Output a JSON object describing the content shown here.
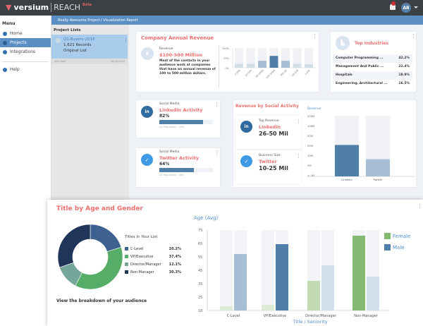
{
  "header": {
    "brand": "versium",
    "product": "REACH",
    "badge": "Beta",
    "notifications": "1",
    "avatar": "AB"
  },
  "sidebar": {
    "title": "Menu",
    "items": [
      {
        "label": "Home",
        "icon": "home-icon"
      },
      {
        "label": "Projects",
        "icon": "database-icon",
        "active": true
      },
      {
        "label": "Integrations",
        "icon": "plug-icon"
      }
    ],
    "help": "Help"
  },
  "breadcrumb": "Really Awesome Project / Visualization Report",
  "project_lists": {
    "title": "Project Lists",
    "item": {
      "name": "Q1-Buyers-2018",
      "records": "1,621 Records",
      "type": "Original List",
      "owner": "Wes Noel",
      "date": "08/02/2018"
    }
  },
  "revenue_card": {
    "title": "Company Annual Revenue",
    "label": "Revenue",
    "value": "$100-500 Million",
    "description": "Most of the contacts in your audience work at companies that have an annual revenue of 100 to 500 million dollars.",
    "chart_data": {
      "type": "bar",
      "categories": [
        "<10M",
        "10-50M",
        "50-100M",
        "100-500M",
        "500-1B",
        "1B-10B",
        ">10B"
      ],
      "values": [
        20,
        20,
        35,
        60,
        35,
        20,
        18
      ],
      "highlight_index": 3,
      "yticks": [
        "100%",
        "50%",
        "0%"
      ],
      "ylim": [
        0,
        100
      ]
    }
  },
  "industries": {
    "title": "Top Industries",
    "rows": [
      {
        "name": "Computer Programming ...",
        "pct": "42.2%"
      },
      {
        "name": "Management And Public ...",
        "pct": "22.4%"
      },
      {
        "name": "Hospitals",
        "pct": "18.9%"
      },
      {
        "name": "Engineering, Architectural ...",
        "pct": "16.5%"
      }
    ]
  },
  "linkedin": {
    "label": "Social Media",
    "title": "Linkedin Activity",
    "pct": "82%",
    "value": 82,
    "footnote": "US Population - 19%"
  },
  "twitter": {
    "label": "Social Media",
    "title": "Twitter Activity",
    "pct": "64%",
    "value": 64,
    "footnote": "US Population - 38%"
  },
  "social_revenue": {
    "title": "Revenue by Social Activity",
    "top": {
      "label": "Top Revenue",
      "network": "Linkedin",
      "value": "26-50 Mil"
    },
    "size": {
      "label": "Business Size",
      "network": "Twitter",
      "value": "10-25 Mil"
    },
    "chart_data": {
      "type": "bar",
      "ylabel": "Revenue",
      "yticks": [
        "300M",
        "100M",
        "50M",
        "25M",
        "10M",
        "5M",
        "< 1M"
      ],
      "ytick_values": [
        300,
        100,
        50,
        25,
        10,
        5,
        1
      ],
      "categories": [
        "Linkedin",
        "Twitter"
      ],
      "values": [
        26,
        8
      ],
      "colors": [
        "#4f7ea8",
        "#a7bfd6"
      ]
    }
  },
  "age_gender": {
    "title": "Title by Age and Gender",
    "legend_title": "Titles In Your List",
    "caption": "View the breakdown of your audience",
    "donut": {
      "type": "pie",
      "slices": [
        {
          "label": "C-Level",
          "pct": "20.2%",
          "value": 20.2,
          "color": "#3e6192"
        },
        {
          "label": "VP/Executive",
          "pct": "37.4%",
          "value": 37.4,
          "color": "#55ad68"
        },
        {
          "label": "Director/Manager",
          "pct": "12.1%",
          "value": 12.1,
          "color": "#74a69a"
        },
        {
          "label": "Non-Manager",
          "pct": "30.3%",
          "value": 30.3,
          "color": "#1f3559"
        }
      ]
    },
    "chart_data": {
      "type": "bar",
      "ylabel": "Age (Avg)",
      "xlabel": "Title / Seniority",
      "yticks": [
        75,
        65,
        55,
        45,
        35,
        25,
        18
      ],
      "ylim": [
        18,
        75
      ],
      "categories": [
        "C-Level",
        "VP/Executive",
        "Director/Manager",
        "Non-Manager"
      ],
      "series": [
        {
          "name": "Female",
          "values": [
            21,
            22,
            39,
            71
          ],
          "colors": [
            "#dcebd6",
            "#dcebd6",
            "#c2dbb5",
            "#86b972"
          ]
        },
        {
          "name": "Male",
          "values": [
            58,
            65,
            50,
            42
          ],
          "colors": [
            "#a6bfd7",
            "#4f7ea8",
            "#d2dfe9",
            "#d2dfe9"
          ]
        }
      ],
      "legend_colors": [
        "#86b972",
        "#4f7ea8"
      ]
    }
  }
}
